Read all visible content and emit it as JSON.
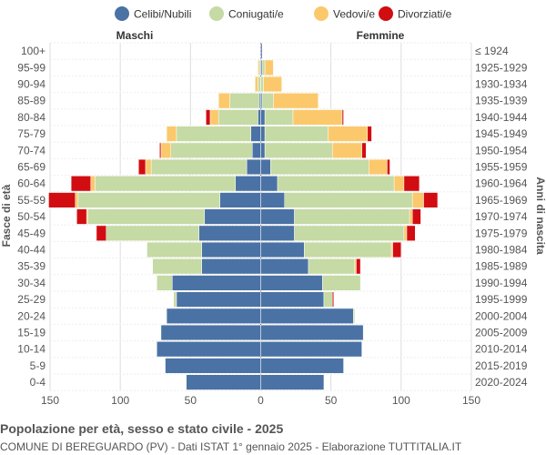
{
  "title": "Popolazione per età, sesso e stato civile - 2025",
  "subtitle": "COMUNE DI BEREGUARDO (PV) - Dati ISTAT 1° gennaio 2025 - Elaborazione TUTTITALIA.IT",
  "labels": {
    "left_side": "Maschi",
    "right_side": "Femmine"
  },
  "chart_data": {
    "type": "bar",
    "orientation": "horizontal-population-pyramid",
    "title": "Popolazione per età, sesso e stato civile - 2025",
    "ylabel_left": "Fasce di età",
    "ylabel_right": "Anni di nascita",
    "xlim": [
      -150,
      150
    ],
    "x_ticks": [
      -150,
      -100,
      -50,
      0,
      50,
      100,
      150
    ],
    "x_tick_labels": [
      "150",
      "100",
      "50",
      "0",
      "50",
      "100",
      "150"
    ],
    "grid": true,
    "legend_position": "top",
    "series": [
      {
        "name": "Celibi/Nubili",
        "color": "#4a72a5"
      },
      {
        "name": "Coniugati/e",
        "color": "#c5daa4"
      },
      {
        "name": "Vedovi/e",
        "color": "#fbc96b"
      },
      {
        "name": "Divorziati/e",
        "color": "#d10d12"
      }
    ],
    "age_groups": [
      "100+",
      "95-99",
      "90-94",
      "85-89",
      "80-84",
      "75-79",
      "70-74",
      "65-69",
      "60-64",
      "55-59",
      "50-54",
      "45-49",
      "40-44",
      "35-39",
      "30-34",
      "25-29",
      "20-24",
      "15-19",
      "10-14",
      "5-9",
      "0-4"
    ],
    "birth_years": [
      "≤ 1924",
      "1925-1929",
      "1930-1934",
      "1935-1939",
      "1940-1944",
      "1945-1949",
      "1950-1954",
      "1955-1959",
      "1960-1964",
      "1965-1969",
      "1970-1974",
      "1975-1979",
      "1980-1984",
      "1985-1989",
      "1990-1994",
      "1995-1999",
      "2000-2004",
      "2005-2009",
      "2010-2014",
      "2015-2019",
      "2020-2024"
    ],
    "males": {
      "Celibi/Nubili": [
        0,
        0,
        0,
        1,
        2,
        7,
        6,
        10,
        18,
        29,
        40,
        44,
        42,
        42,
        63,
        60,
        67,
        71,
        74,
        68,
        53
      ],
      "Coniugati/e": [
        0,
        1,
        2,
        21,
        28,
        53,
        58,
        68,
        100,
        101,
        83,
        66,
        39,
        35,
        11,
        2,
        0,
        0,
        0,
        0,
        0
      ],
      "Vedovi/e": [
        0,
        1,
        2,
        8,
        6,
        7,
        7,
        4,
        3,
        2,
        1,
        0,
        0,
        0,
        0,
        0,
        0,
        0,
        0,
        0,
        0
      ],
      "Divorziati/e": [
        0,
        0,
        0,
        0,
        3,
        0,
        1,
        5,
        14,
        19,
        7,
        7,
        0,
        0,
        0,
        0,
        0,
        0,
        0,
        0,
        0
      ]
    },
    "females": {
      "Celibi/Nubili": [
        1,
        1,
        0,
        1,
        3,
        3,
        3,
        7,
        12,
        17,
        24,
        24,
        31,
        34,
        44,
        45,
        66,
        73,
        72,
        59,
        45
      ],
      "Coniugati/e": [
        0,
        2,
        2,
        8,
        20,
        45,
        48,
        70,
        83,
        91,
        82,
        78,
        62,
        33,
        27,
        6,
        1,
        0,
        0,
        0,
        0
      ],
      "Vedovi/e": [
        0,
        6,
        13,
        32,
        35,
        28,
        21,
        13,
        7,
        8,
        2,
        2,
        1,
        1,
        0,
        0,
        0,
        0,
        0,
        0,
        0
      ],
      "Divorziati/e": [
        0,
        0,
        0,
        0,
        1,
        3,
        3,
        2,
        11,
        10,
        6,
        6,
        6,
        3,
        0,
        1,
        0,
        0,
        0,
        0,
        0
      ]
    }
  }
}
